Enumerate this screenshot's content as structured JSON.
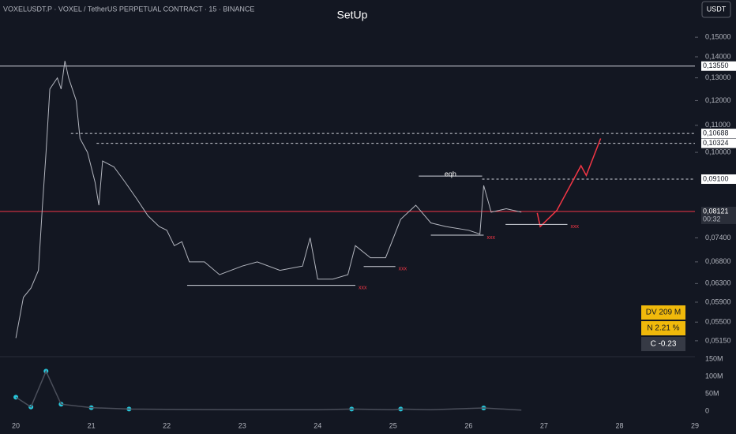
{
  "header": {
    "symbol": "VOXELUSDT.P · VOXEL / TetherUS PERPETUAL CONTRACT · 15 · BINANCE",
    "currency": "USDT"
  },
  "chart_data": {
    "type": "line",
    "title": "SetUp",
    "log_scale": true,
    "grid": false,
    "xlim": [
      19.79,
      29.0
    ],
    "xticks": [
      20,
      21,
      22,
      23,
      24,
      25,
      26,
      27,
      28,
      29
    ],
    "ylim": [
      0.0487,
      0.171
    ],
    "yticks": [
      {
        "value": 0.15,
        "label": "0,15000"
      },
      {
        "value": 0.14,
        "label": "0,14000"
      },
      {
        "value": 0.13,
        "label": "0,13000"
      },
      {
        "value": 0.12,
        "label": "0,12000"
      },
      {
        "value": 0.11,
        "label": "0,11000"
      },
      {
        "value": 0.1,
        "label": "0,10000"
      },
      {
        "value": 0.074,
        "label": "0,07400"
      },
      {
        "value": 0.068,
        "label": "0,06800"
      },
      {
        "value": 0.063,
        "label": "0,06300"
      },
      {
        "value": 0.059,
        "label": "0,05900"
      },
      {
        "value": 0.055,
        "label": "0,05500"
      },
      {
        "value": 0.0515,
        "label": "0,05150"
      }
    ],
    "series": [
      {
        "name": "VOXELUSDT.P",
        "color": "#b2b5be",
        "x": [
          20.0,
          20.1,
          20.2,
          20.3,
          20.35,
          20.4,
          20.45,
          20.55,
          20.6,
          20.65,
          20.7,
          20.8,
          20.85,
          20.95,
          21.05,
          21.1,
          21.15,
          21.3,
          21.45,
          21.6,
          21.75,
          21.9,
          22.0,
          22.1,
          22.2,
          22.3,
          22.5,
          22.7,
          23.0,
          23.2,
          23.5,
          23.8,
          23.9,
          24.0,
          24.2,
          24.4,
          24.5,
          24.7,
          24.9,
          25.1,
          25.3,
          25.5,
          25.7,
          26.0,
          26.15,
          26.2,
          26.3,
          26.5,
          26.7
        ],
        "values": [
          0.052,
          0.06,
          0.062,
          0.066,
          0.082,
          0.1,
          0.125,
          0.13,
          0.125,
          0.138,
          0.13,
          0.12,
          0.105,
          0.1,
          0.09,
          0.083,
          0.097,
          0.095,
          0.09,
          0.085,
          0.08,
          0.077,
          0.076,
          0.072,
          0.073,
          0.068,
          0.068,
          0.065,
          0.067,
          0.068,
          0.066,
          0.067,
          0.074,
          0.064,
          0.064,
          0.065,
          0.072,
          0.069,
          0.069,
          0.079,
          0.083,
          0.078,
          0.077,
          0.076,
          0.075,
          0.089,
          0.081,
          0.082,
          0.081
        ]
      },
      {
        "name": "Projection",
        "color": "#f23645",
        "x": [
          26.91,
          26.95,
          27.17,
          27.49,
          27.56,
          27.75
        ],
        "values": [
          0.0808,
          0.077,
          0.0815,
          0.0954,
          0.0922,
          0.105
        ]
      }
    ],
    "levels": [
      {
        "value": 0.1355,
        "label": "0,13550",
        "from": 19.79,
        "color": "#d1d4dc",
        "dashed": false
      },
      {
        "value": 0.10688,
        "label": "0,10688",
        "from": 20.73,
        "color": "#d1d4dc",
        "dashed": true
      },
      {
        "value": 0.10324,
        "label": "0,10324",
        "from": 21.07,
        "color": "#d1d4dc",
        "dashed": true
      },
      {
        "value": 0.091,
        "label": "0,09100",
        "from": 26.18,
        "color": "#d1d4dc",
        "dashed": true
      },
      {
        "value": 0.08121,
        "label": "0,08121",
        "from": 19.79,
        "color": "#f23645",
        "dashed": false
      }
    ],
    "price_timer": "00:32",
    "brackets": [
      {
        "from": 22.27,
        "to": 24.5,
        "value": 0.0626,
        "text": "xxx"
      },
      {
        "from": 24.61,
        "to": 25.03,
        "value": 0.0669,
        "text": "xxx"
      },
      {
        "from": 25.5,
        "to": 26.2,
        "value": 0.0747,
        "text": "xxx"
      },
      {
        "from": 26.49,
        "to": 27.31,
        "value": 0.0776,
        "text": "xxx"
      },
      {
        "from": 25.34,
        "to": 26.18,
        "value": 0.092,
        "text": "eqh"
      }
    ],
    "stats": [
      "DV 209 M",
      "N 2.21 %",
      "C  -0.23"
    ],
    "volume": {
      "ylim": [
        0,
        150
      ],
      "yticks": [
        {
          "value": 150,
          "label": "150M"
        },
        {
          "value": 100,
          "label": "100M"
        },
        {
          "value": 50,
          "label": "50M"
        },
        0
      ],
      "x": [
        20.0,
        20.2,
        20.4,
        20.6,
        21.0,
        21.5,
        22.0,
        23.0,
        24.0,
        24.45,
        25.0,
        25.1,
        25.5,
        26.2,
        26.7
      ],
      "values": [
        40,
        12,
        115,
        20,
        10,
        6,
        5,
        4,
        4,
        6,
        4,
        6,
        4,
        9,
        3
      ]
    }
  }
}
